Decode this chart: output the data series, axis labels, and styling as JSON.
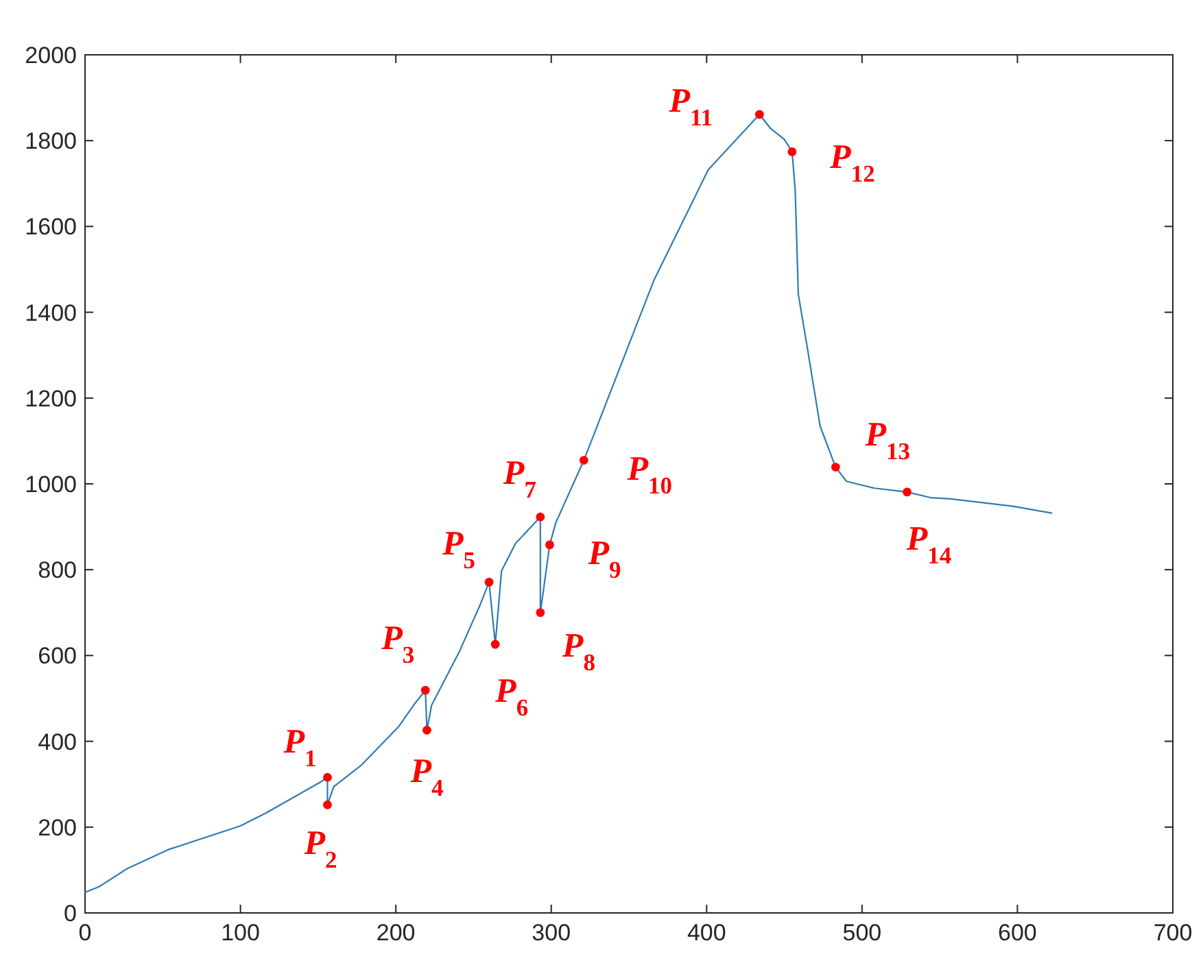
{
  "chart_data": {
    "type": "line",
    "xlim": [
      0,
      700
    ],
    "xticks": [
      0,
      100,
      200,
      300,
      400,
      500,
      600,
      700
    ],
    "ylim": [
      0,
      2000
    ],
    "yticks": [
      0,
      200,
      400,
      600,
      800,
      1000,
      1200,
      1400,
      1600,
      1800,
      2000
    ],
    "grid": false,
    "series": [
      {
        "color": "#2e7bb4",
        "marker": "none",
        "line_style": "solid",
        "x": [
          0,
          9,
          27,
          54,
          100,
          116,
          152,
          156,
          156,
          160,
          178,
          202,
          212,
          219,
          220,
          223,
          241,
          254,
          260,
          264,
          268,
          277,
          293,
          293,
          299,
          303,
          321,
          366,
          401,
          434,
          441,
          450,
          455,
          457,
          459,
          465,
          473,
          483,
          490,
          508,
          529,
          544,
          557,
          597,
          622
        ],
        "values": [
          48,
          61,
          103,
          148,
          203,
          232,
          306,
          316,
          252,
          294,
          345,
          435,
          487,
          519,
          426,
          484,
          610,
          716,
          771,
          626,
          797,
          861,
          923,
          700,
          858,
          910,
          1055,
          1474,
          1732,
          1861,
          1829,
          1803,
          1774,
          1684,
          1442,
          1313,
          1135,
          1039,
          1006,
          990,
          981,
          968,
          965,
          948,
          932
        ]
      },
      {
        "type": "scatter",
        "color": "#ff0000",
        "marker": "circle",
        "x": [
          156,
          156,
          219,
          220,
          260,
          264,
          293,
          293,
          299,
          321,
          434,
          455,
          483,
          529
        ],
        "values": [
          316,
          252,
          519,
          426,
          771,
          626,
          923,
          700,
          858,
          1055,
          1861,
          1774,
          1039,
          981
        ]
      }
    ],
    "annotations": [
      {
        "text": "P$_{1}$",
        "x": 156,
        "y": 316
      },
      {
        "text": "P$_{2}$",
        "x": 156,
        "y": 252
      },
      {
        "text": "P$_{3}$",
        "x": 219,
        "y": 519
      },
      {
        "text": "P$_{4}$",
        "x": 220,
        "y": 426
      },
      {
        "text": "P$_{5}$",
        "x": 260,
        "y": 771
      },
      {
        "text": "P$_{6}$",
        "x": 264,
        "y": 626
      },
      {
        "text": "P$_{7}$",
        "x": 293,
        "y": 923
      },
      {
        "text": "P$_{8}$",
        "x": 293,
        "y": 700
      },
      {
        "text": "P$_{9}$",
        "x": 299,
        "y": 858
      },
      {
        "text": "P$_{10}$",
        "x": 321,
        "y": 1055
      },
      {
        "text": "P$_{11}$",
        "x": 434,
        "y": 1861
      },
      {
        "text": "P$_{12}$",
        "x": 455,
        "y": 1774
      },
      {
        "text": "P$_{13}$",
        "x": 483,
        "y": 1039
      },
      {
        "text": "P$_{14}$",
        "x": 529,
        "y": 981
      }
    ]
  }
}
